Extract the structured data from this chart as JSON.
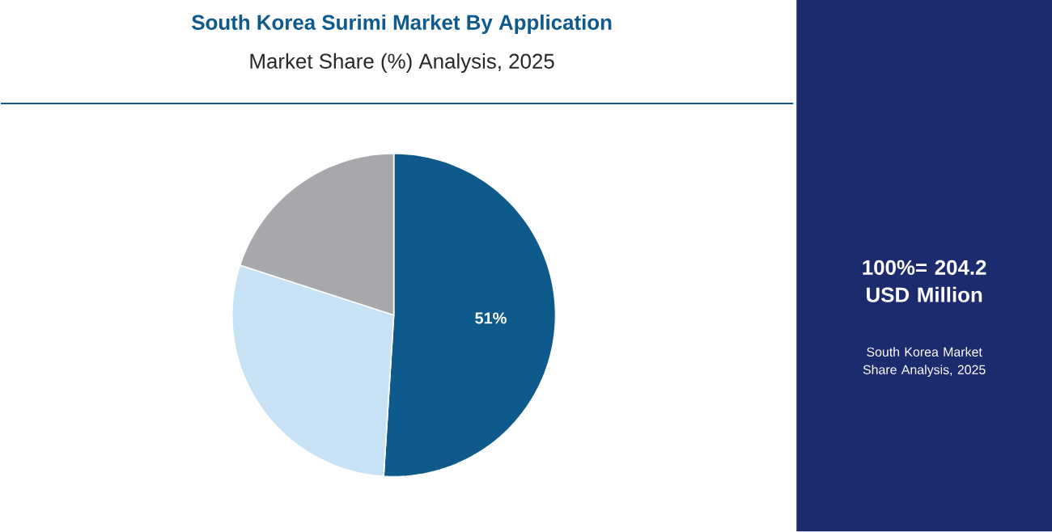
{
  "chart_data": {
    "type": "pie",
    "title": "South Korea Surimi Market By Application",
    "subtitle": "Market Share (%) Analysis, 2025",
    "categories": [
      null,
      null,
      null
    ],
    "values": [
      51,
      29,
      20
    ],
    "colors": [
      "#0f5a8c",
      "#c7e2f4",
      "#a6a8ab"
    ],
    "value_labels": [
      "51%",
      null,
      null
    ],
    "annotations": [
      "100%= 204.2 USD Million",
      "South Korea Market Share Analysis, 2025"
    ]
  }
}
